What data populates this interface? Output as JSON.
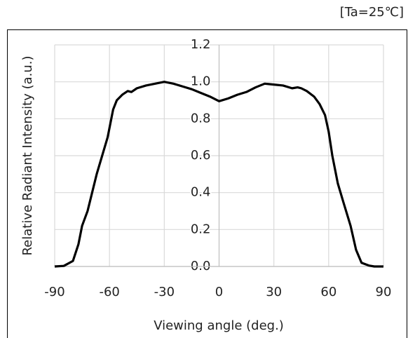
{
  "chart_data": {
    "type": "line",
    "annotation": "[Ta=25℃]",
    "xlabel": "Viewing angle (deg.)",
    "ylabel": "Relative Radiant Intensity (a.u.)",
    "x": [
      -90,
      -85,
      -80,
      -77,
      -75,
      -72,
      -70,
      -67,
      -64,
      -61,
      -58,
      -56,
      -53,
      -50,
      -48,
      -45,
      -40,
      -35,
      -30,
      -25,
      -20,
      -15,
      -10,
      -5,
      0,
      5,
      10,
      15,
      20,
      25,
      30,
      35,
      40,
      43,
      45,
      48,
      52,
      55,
      58,
      60,
      62,
      65,
      68,
      72,
      75,
      78,
      82,
      85,
      90
    ],
    "series": [
      {
        "color": "#000000",
        "values": [
          0,
          0.003,
          0.03,
          0.12,
          0.22,
          0.3,
          0.38,
          0.5,
          0.6,
          0.7,
          0.85,
          0.9,
          0.93,
          0.95,
          0.945,
          0.965,
          0.98,
          0.99,
          1.0,
          0.99,
          0.975,
          0.96,
          0.94,
          0.92,
          0.895,
          0.91,
          0.93,
          0.945,
          0.97,
          0.99,
          0.985,
          0.98,
          0.965,
          0.97,
          0.965,
          0.95,
          0.92,
          0.88,
          0.82,
          0.73,
          0.6,
          0.45,
          0.35,
          0.22,
          0.09,
          0.02,
          0.005,
          0,
          0
        ]
      }
    ],
    "xlim": [
      -90,
      90
    ],
    "xticks": [
      -90,
      -60,
      -30,
      0,
      30,
      60,
      90
    ],
    "ylim": [
      0,
      1.2
    ],
    "yticks": [
      {
        "value": 0,
        "label": "0.0"
      },
      0.2,
      0.4,
      0.6,
      0.8,
      {
        "value": 1,
        "label": "1.0"
      },
      1.2
    ],
    "grid": true
  }
}
